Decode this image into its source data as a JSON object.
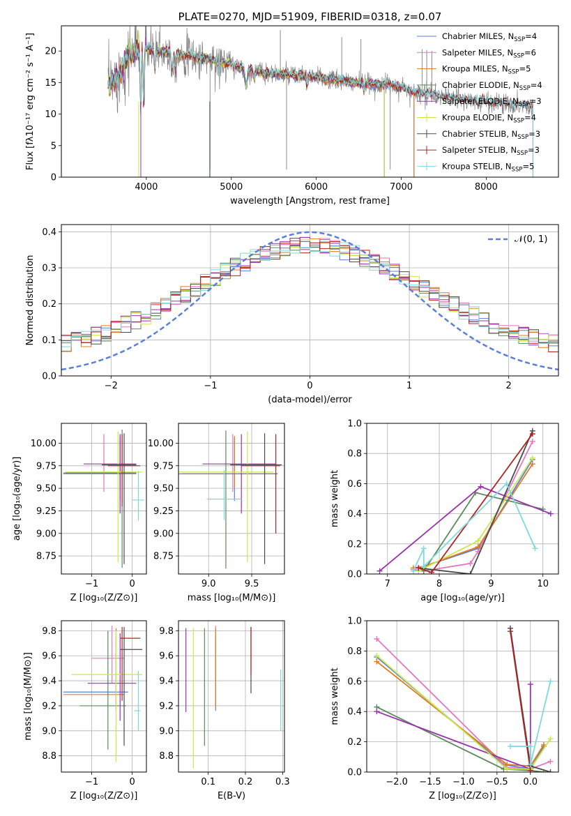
{
  "chart_data": [
    {
      "id": "spectrum",
      "type": "line",
      "title": "PLATE=0270, MJD=51909, FIBERID=0318, z=0.07",
      "xlabel": "wavelength [Angstrom, rest frame]",
      "ylabel": "Flux [fλ10⁻¹⁷ erg cm⁻² s⁻¹ A⁻¹]",
      "xlim": [
        3000,
        8850
      ],
      "ylim": [
        0,
        24
      ],
      "xticks": [
        4000,
        5000,
        6000,
        7000,
        8000
      ],
      "yticks": [
        0,
        5,
        10,
        15,
        20
      ],
      "grid": false,
      "legend": "top-right",
      "observed_color": "#808080",
      "continuum": {
        "x": [
          3550,
          3650,
          3800,
          3950,
          4100,
          4300,
          4500,
          4800,
          5100,
          5400,
          5700,
          6000,
          6300,
          6600,
          6900,
          7200,
          7500,
          7800,
          8100,
          8400,
          8550
        ],
        "y": [
          14.5,
          15.5,
          19.5,
          20.5,
          20.0,
          19.8,
          19.2,
          18.5,
          17.5,
          16.5,
          16.2,
          15.8,
          15.2,
          14.8,
          14.6,
          13.4,
          12.7,
          12.1,
          11.8,
          11.3,
          11.2
        ]
      },
      "series": [
        {
          "name": "Chabrier MILES, N_SSP=4",
          "label": "Chabrier MILES, N",
          "sub": "SSP",
          "tail": "=4",
          "color": "#5b7fd8",
          "x_end": 7150
        },
        {
          "name": "Salpeter MILES, N_SSP=6",
          "label": "Salpeter MILES, N",
          "sub": "SSP",
          "tail": "=6",
          "color": "#e377c2",
          "x_end": 7150
        },
        {
          "name": "Kroupa MILES, N_SSP=5",
          "label": "Kroupa MILES, N",
          "sub": "SSP",
          "tail": "=5",
          "color": "#e07b1a",
          "x_end": 7150
        },
        {
          "name": "Chabrier ELODIE, N_SSP=4",
          "label": "Chabrier ELODIE, N",
          "sub": "SSP",
          "tail": "=4",
          "color": "#5a8a5a",
          "x_end": 6800
        },
        {
          "name": "Salpeter ELODIE, N_SSP=3",
          "label": "Salpeter ELODIE, N",
          "sub": "SSP",
          "tail": "=3",
          "color": "#9b30b0",
          "x_end": 6800
        },
        {
          "name": "Kroupa ELODIE, N_SSP=4",
          "label": "Kroupa ELODIE, N",
          "sub": "SSP",
          "tail": "=4",
          "color": "#c9e84b",
          "x_end": 6800
        },
        {
          "name": "Chabrier STELIB, N_SSP=3",
          "label": "Chabrier STELIB, N",
          "sub": "SSP",
          "tail": "=3",
          "color": "#4a4a4a",
          "x_end": 8550
        },
        {
          "name": "Salpeter STELIB, N_SSP=3",
          "label": "Salpeter STELIB, N",
          "sub": "SSP",
          "tail": "=3",
          "color": "#b22222",
          "x_end": 8550
        },
        {
          "name": "Kroupa STELIB, N_SSP=5",
          "label": "Kroupa STELIB, N",
          "sub": "SSP",
          "tail": "=5",
          "color": "#7fd8de",
          "x_end": 8550
        }
      ]
    },
    {
      "id": "residuals",
      "type": "line",
      "xlabel": "(data-model)/error",
      "ylabel": "Normed distribution",
      "xlim": [
        -2.5,
        2.5
      ],
      "ylim": [
        0,
        0.42
      ],
      "xticks": [
        -2,
        -1,
        0,
        1,
        2
      ],
      "yticks": [
        0.0,
        0.1,
        0.2,
        0.3,
        0.4
      ],
      "grid": true,
      "legend": "top-right",
      "gaussian_label": "𝒩(0, 1)",
      "gaussian_color": "#5b7fd8"
    },
    {
      "id": "age-vs-z",
      "type": "scatter",
      "xlabel": "Z [log₁₀(Z/Z⊙)]",
      "ylabel": "age  [log₁₀(age/yr)]",
      "xlim": [
        -1.75,
        0.35
      ],
      "ylim": [
        8.55,
        10.22
      ],
      "xticks": [
        -1,
        0
      ],
      "yticks": [
        8.75,
        9.0,
        9.25,
        9.5,
        9.75,
        10.0
      ],
      "grid": true,
      "points": [
        {
          "x": -0.3,
          "y": 9.67,
          "xerr": [
            1.4,
            0.4
          ],
          "yerr": [
            0.3,
            0.4
          ],
          "color": "#5b7fd8"
        },
        {
          "x": -0.7,
          "y": 9.66,
          "xerr": [
            1.0,
            0.6
          ],
          "yerr": [
            0.2,
            0.44
          ],
          "color": "#e377c2"
        },
        {
          "x": -0.3,
          "y": 9.66,
          "xerr": [
            1.4,
            0.4
          ],
          "yerr": [
            0.15,
            0.42
          ],
          "color": "#e07b1a"
        },
        {
          "x": -0.25,
          "y": 9.67,
          "xerr": [
            1.4,
            0.35
          ],
          "yerr": [
            1.05,
            0.48
          ],
          "color": "#5a8a5a"
        },
        {
          "x": -0.3,
          "y": 9.77,
          "xerr": [
            0.9,
            0.4
          ],
          "yerr": [
            0.55,
            0.33
          ],
          "color": "#9b30b0"
        },
        {
          "x": -0.35,
          "y": 9.68,
          "xerr": [
            1.3,
            0.6
          ],
          "yerr": [
            1.0,
            0.45
          ],
          "color": "#c9e84b"
        },
        {
          "x": -0.2,
          "y": 9.76,
          "xerr": [
            0.55,
            0.3
          ],
          "yerr": [
            1.1,
            0.35
          ],
          "color": "#4a4a4a"
        },
        {
          "x": -0.25,
          "y": 9.75,
          "xerr": [
            0.35,
            0.45
          ],
          "yerr": [
            0.45,
            0.35
          ],
          "color": "#b22222"
        },
        {
          "x": 0.15,
          "y": 9.37,
          "xerr": [
            0.15,
            0.15
          ],
          "yerr": [
            0.23,
            0.32
          ],
          "color": "#7fd8de"
        }
      ]
    },
    {
      "id": "age-vs-mass",
      "type": "scatter",
      "xlabel": "mass [log₁₀(M/M⊙)]",
      "ylabel": "",
      "xlim": [
        8.65,
        9.88
      ],
      "ylim": [
        8.55,
        10.22
      ],
      "xticks": [
        9.0,
        9.5
      ],
      "yticks": [
        8.75,
        9.0,
        9.25,
        9.5,
        9.75,
        10.0
      ],
      "grid": true,
      "points": [
        {
          "x": 9.3,
          "y": 9.66,
          "xerr": [
            0.6,
            0.5
          ],
          "yerr": [
            0.3,
            0.4
          ],
          "color": "#5b7fd8"
        },
        {
          "x": 9.28,
          "y": 9.66,
          "xerr": [
            0.6,
            0.5
          ],
          "yerr": [
            0.2,
            0.44
          ],
          "color": "#e377c2"
        },
        {
          "x": 9.3,
          "y": 9.66,
          "xerr": [
            0.6,
            0.5
          ],
          "yerr": [
            0.15,
            0.42
          ],
          "color": "#e07b1a"
        },
        {
          "x": 9.2,
          "y": 9.66,
          "xerr": [
            0.6,
            0.6
          ],
          "yerr": [
            1.05,
            0.48
          ],
          "color": "#5a8a5a"
        },
        {
          "x": 9.38,
          "y": 9.77,
          "xerr": [
            0.45,
            0.4
          ],
          "yerr": [
            0.55,
            0.33
          ],
          "color": "#9b30b0"
        },
        {
          "x": 9.45,
          "y": 9.68,
          "xerr": [
            0.9,
            0.3
          ],
          "yerr": [
            1.0,
            0.45
          ],
          "color": "#c9e84b"
        },
        {
          "x": 9.65,
          "y": 9.76,
          "xerr": [
            0.4,
            0.2
          ],
          "yerr": [
            1.1,
            0.35
          ],
          "color": "#4a4a4a"
        },
        {
          "x": 9.78,
          "y": 9.75,
          "xerr": [
            0.4,
            0.05
          ],
          "yerr": [
            0.75,
            0.35
          ],
          "color": "#b22222"
        },
        {
          "x": 9.18,
          "y": 9.38,
          "xerr": [
            0.2,
            0.2
          ],
          "yerr": [
            0.23,
            0.32
          ],
          "color": "#7fd8de"
        }
      ]
    },
    {
      "id": "weight-vs-age",
      "type": "line",
      "xlabel": "age  [log₁₀(age/yr)]",
      "ylabel": "mass weight",
      "xlim": [
        6.6,
        10.3
      ],
      "ylim": [
        0,
        1.0
      ],
      "xticks": [
        7,
        8,
        9,
        10
      ],
      "yticks": [
        0.0,
        0.2,
        0.4,
        0.6,
        0.8,
        1.0
      ],
      "grid": true,
      "series": [
        {
          "color": "#5b7fd8",
          "x": [
            7.7,
            8.75,
            9.8
          ],
          "y": [
            0.05,
            0.17,
            0.76
          ]
        },
        {
          "color": "#e377c2",
          "x": [
            7.5,
            7.7,
            8.6,
            8.75,
            9.8
          ],
          "y": [
            0.03,
            0.02,
            0.07,
            0.15,
            0.88
          ]
        },
        {
          "color": "#e07b1a",
          "x": [
            7.5,
            7.7,
            8.75,
            9.8
          ],
          "y": [
            0.04,
            0.05,
            0.18,
            0.73
          ]
        },
        {
          "color": "#5a8a5a",
          "x": [
            7.7,
            8.7,
            10.0
          ],
          "y": [
            0.02,
            0.54,
            0.43
          ]
        },
        {
          "color": "#9b30b0",
          "x": [
            6.85,
            8.8,
            10.15
          ],
          "y": [
            0.02,
            0.58,
            0.4
          ]
        },
        {
          "color": "#c9e84b",
          "x": [
            7.6,
            8.75,
            9.8
          ],
          "y": [
            0.02,
            0.22,
            0.77
          ]
        },
        {
          "color": "#4a4a4a",
          "x": [
            7.6,
            8.6,
            9.8
          ],
          "y": [
            0.04,
            0.0,
            0.95
          ]
        },
        {
          "color": "#b22222",
          "x": [
            7.6,
            7.85,
            9.8
          ],
          "y": [
            0.04,
            0.01,
            0.93
          ]
        },
        {
          "color": "#7fd8de",
          "x": [
            7.5,
            7.7,
            7.7,
            9.3,
            9.85
          ],
          "y": [
            0.02,
            0.17,
            0.05,
            0.6,
            0.17
          ]
        }
      ]
    },
    {
      "id": "mass-vs-z",
      "type": "scatter",
      "xlabel": "Z [log₁₀(Z/Z⊙)]",
      "ylabel": "mass [log₁₀(M/M⊙)]",
      "xlim": [
        -1.75,
        0.35
      ],
      "ylim": [
        8.67,
        9.88
      ],
      "xticks": [
        -1,
        0
      ],
      "yticks": [
        8.8,
        9.0,
        9.2,
        9.4,
        9.6,
        9.8
      ],
      "grid": true,
      "points": [
        {
          "x": -0.4,
          "y": 9.31,
          "xerr": [
            1.3,
            0.3
          ],
          "yerr": [
            0.15,
            0.43
          ],
          "color": "#5b7fd8"
        },
        {
          "x": -0.5,
          "y": 9.58,
          "xerr": [
            0.5,
            0.3
          ],
          "yerr": [
            0.2,
            0.26
          ],
          "color": "#e377c2"
        },
        {
          "x": -0.4,
          "y": 9.29,
          "xerr": [
            1.3,
            0.2
          ],
          "yerr": [
            0.1,
            0.53
          ],
          "color": "#e07b1a"
        },
        {
          "x": -0.6,
          "y": 9.2,
          "xerr": [
            0.7,
            0.45
          ],
          "yerr": [
            0.35,
            0.6
          ],
          "color": "#5a8a5a"
        },
        {
          "x": -0.3,
          "y": 9.38,
          "xerr": [
            0.8,
            0.4
          ],
          "yerr": [
            0.3,
            0.4
          ],
          "color": "#9b30b0"
        },
        {
          "x": -0.4,
          "y": 9.45,
          "xerr": [
            1.1,
            0.65
          ],
          "yerr": [
            0.7,
            0.35
          ],
          "color": "#c9e84b"
        },
        {
          "x": -0.2,
          "y": 9.65,
          "xerr": [
            0.1,
            0.45
          ],
          "yerr": [
            0.77,
            0.18
          ],
          "color": "#4a4a4a"
        },
        {
          "x": -0.25,
          "y": 9.74,
          "xerr": [
            0.05,
            0.45
          ],
          "yerr": [
            0.5,
            0.09
          ],
          "color": "#b22222"
        },
        {
          "x": 0.15,
          "y": 9.16,
          "xerr": [
            0.1,
            0.05
          ],
          "yerr": [
            0.16,
            0.32
          ],
          "color": "#7fd8de"
        }
      ]
    },
    {
      "id": "mass-vs-ebv",
      "type": "scatter",
      "xlabel": "E(B-V)",
      "ylabel": "",
      "xlim": [
        0.02,
        0.305
      ],
      "ylim": [
        8.67,
        9.88
      ],
      "xticks": [
        0.1,
        0.2,
        0.3
      ],
      "yticks": [
        8.8,
        9.0,
        9.2,
        9.4,
        9.6,
        9.8
      ],
      "grid": true,
      "points": [
        {
          "x": 0.12,
          "y": 9.31,
          "xerr": [
            0,
            0
          ],
          "yerr": [
            0.15,
            0.43
          ],
          "color": "#5b7fd8"
        },
        {
          "x": 0.12,
          "y": 9.58,
          "xerr": [
            0,
            0
          ],
          "yerr": [
            0.2,
            0.26
          ],
          "color": "#e377c2"
        },
        {
          "x": 0.12,
          "y": 9.29,
          "xerr": [
            0,
            0
          ],
          "yerr": [
            0.1,
            0.53
          ],
          "color": "#e07b1a"
        },
        {
          "x": 0.09,
          "y": 9.2,
          "xerr": [
            0,
            0
          ],
          "yerr": [
            0.32,
            0.62
          ],
          "color": "#5a8a5a"
        },
        {
          "x": 0.04,
          "y": 9.38,
          "xerr": [
            0,
            0
          ],
          "yerr": [
            0.23,
            0.44
          ],
          "color": "#9b30b0"
        },
        {
          "x": 0.06,
          "y": 9.45,
          "xerr": [
            0,
            0
          ],
          "yerr": [
            0.75,
            0.37
          ],
          "color": "#c9e84b"
        },
        {
          "x": 0.215,
          "y": 9.6,
          "xerr": [
            0,
            0
          ],
          "yerr": [
            0.3,
            0.23
          ],
          "color": "#4a4a4a"
        },
        {
          "x": 0.215,
          "y": 9.7,
          "xerr": [
            0,
            0
          ],
          "yerr": [
            0.25,
            0.13
          ],
          "color": "#b22222"
        },
        {
          "x": 0.295,
          "y": 9.2,
          "xerr": [
            0,
            0
          ],
          "yerr": [
            0.2,
            0.29
          ],
          "color": "#7fd8de"
        }
      ]
    },
    {
      "id": "weight-vs-z",
      "type": "line",
      "xlabel": "Z [log₁₀(Z/Z⊙)]",
      "ylabel": "mass weight",
      "xlim": [
        -2.45,
        0.42
      ],
      "ylim": [
        0,
        1.0
      ],
      "xticks": [
        -2.0,
        -1.5,
        -1.0,
        -0.5,
        0.0
      ],
      "yticks": [
        0.0,
        0.2,
        0.4,
        0.6,
        0.8,
        1.0
      ],
      "grid": true,
      "series": [
        {
          "color": "#5b7fd8",
          "x": [
            -2.3,
            -0.4,
            0.0,
            0.2
          ],
          "y": [
            0.76,
            0.05,
            0.02,
            0.17
          ]
        },
        {
          "color": "#e377c2",
          "x": [
            -2.3,
            -0.35,
            0.0,
            0.3
          ],
          "y": [
            0.88,
            0.03,
            0.02,
            0.07
          ]
        },
        {
          "color": "#e07b1a",
          "x": [
            -2.3,
            -0.35,
            0.0,
            0.2
          ],
          "y": [
            0.73,
            0.05,
            0.04,
            0.18
          ]
        },
        {
          "color": "#5a8a5a",
          "x": [
            -2.3,
            -0.4,
            0.0,
            0.2
          ],
          "y": [
            0.43,
            0.02,
            0.01,
            0.0
          ]
        },
        {
          "color": "#9b30b0",
          "x": [
            -2.3,
            0.0,
            0.0
          ],
          "y": [
            0.4,
            0.02,
            0.58
          ]
        },
        {
          "color": "#c9e84b",
          "x": [
            -2.3,
            -0.35,
            0.0,
            0.3
          ],
          "y": [
            0.77,
            0.02,
            0.02,
            0.22
          ]
        },
        {
          "color": "#4a4a4a",
          "x": [
            -0.3,
            0.0,
            0.3
          ],
          "y": [
            0.95,
            0.04,
            0.0
          ]
        },
        {
          "color": "#b22222",
          "x": [
            -0.3,
            0.0
          ],
          "y": [
            0.93,
            0.01
          ]
        },
        {
          "color": "#7fd8de",
          "x": [
            -0.3,
            0.0,
            0.0,
            0.3
          ],
          "y": [
            0.17,
            0.17,
            0.05,
            0.6
          ]
        }
      ]
    }
  ]
}
